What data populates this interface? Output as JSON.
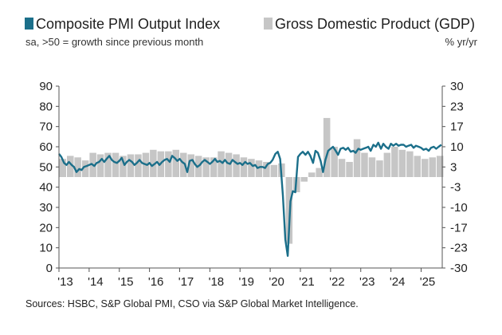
{
  "chart_data": {
    "type": "line+bar",
    "legend": {
      "pmi_label": "Composite PMI Output Index",
      "gdp_label": "Gross Domestic Product (GDP)"
    },
    "left_axis_note": "sa, >50 = growth since previous month",
    "right_axis_note": "% yr/yr",
    "source": "Sources: HSBC, S&P Global PMI, CSO via S&P Global Market Intelligence.",
    "colors": {
      "pmi": "#1b6f8a",
      "gdp": "#c6c6c6",
      "axis": "#555555"
    },
    "left_axis": {
      "min": 0,
      "max": 90,
      "ticks": [
        0,
        10,
        20,
        30,
        40,
        50,
        60,
        70,
        80,
        90
      ]
    },
    "right_axis": {
      "min": -30,
      "max": 30,
      "ticks": [
        "30",
        "23",
        "17",
        "10",
        "3",
        "-3",
        "-10",
        "-17",
        "-23",
        "-30"
      ]
    },
    "x_axis": {
      "start": 2013.0,
      "end": 2025.7,
      "ticks": [
        "'13",
        "'14",
        "'15",
        "'16",
        "'17",
        "'18",
        "'19",
        "'20",
        "'21",
        "'22",
        "'23",
        "'24",
        "'25"
      ]
    },
    "series": [
      {
        "name": "Composite PMI Output Index",
        "kind": "line",
        "axis": "left",
        "points": [
          [
            2013.0,
            56.5
          ],
          [
            2013.08,
            55
          ],
          [
            2013.17,
            52
          ],
          [
            2013.25,
            51
          ],
          [
            2013.33,
            52.5
          ],
          [
            2013.42,
            51
          ],
          [
            2013.5,
            50
          ],
          [
            2013.58,
            47.5
          ],
          [
            2013.67,
            49
          ],
          [
            2013.75,
            48.5
          ],
          [
            2013.83,
            50
          ],
          [
            2013.92,
            50.5
          ],
          [
            2014.0,
            51
          ],
          [
            2014.08,
            51.5
          ],
          [
            2014.17,
            50.5
          ],
          [
            2014.25,
            52
          ],
          [
            2014.33,
            52.5
          ],
          [
            2014.42,
            54
          ],
          [
            2014.5,
            52.5
          ],
          [
            2014.58,
            54
          ],
          [
            2014.67,
            55.5
          ],
          [
            2014.75,
            53.5
          ],
          [
            2014.83,
            52.5
          ],
          [
            2014.92,
            52
          ],
          [
            2015.0,
            53
          ],
          [
            2015.08,
            54.5
          ],
          [
            2015.17,
            51
          ],
          [
            2015.25,
            52.5
          ],
          [
            2015.33,
            53.5
          ],
          [
            2015.42,
            52.5
          ],
          [
            2015.5,
            51
          ],
          [
            2015.58,
            52
          ],
          [
            2015.67,
            53.5
          ],
          [
            2015.75,
            52
          ],
          [
            2015.83,
            51.5
          ],
          [
            2015.92,
            51
          ],
          [
            2016.0,
            52
          ],
          [
            2016.08,
            50.5
          ],
          [
            2016.17,
            51.5
          ],
          [
            2016.25,
            52.5
          ],
          [
            2016.33,
            51
          ],
          [
            2016.42,
            52.5
          ],
          [
            2016.5,
            53.5
          ],
          [
            2016.58,
            54
          ],
          [
            2016.67,
            52.5
          ],
          [
            2016.75,
            55.5
          ],
          [
            2016.83,
            54.5
          ],
          [
            2016.92,
            53
          ],
          [
            2017.0,
            54
          ],
          [
            2017.08,
            52.5
          ],
          [
            2017.17,
            51.5
          ],
          [
            2017.25,
            47.5
          ],
          [
            2017.33,
            53
          ],
          [
            2017.42,
            53.5
          ],
          [
            2017.5,
            51.5
          ],
          [
            2017.58,
            50
          ],
          [
            2017.67,
            51
          ],
          [
            2017.75,
            52.5
          ],
          [
            2017.83,
            53.5
          ],
          [
            2017.92,
            52.5
          ],
          [
            2018.0,
            51.5
          ],
          [
            2018.08,
            52.5
          ],
          [
            2018.17,
            54
          ],
          [
            2018.25,
            52.5
          ],
          [
            2018.33,
            53
          ],
          [
            2018.42,
            52
          ],
          [
            2018.5,
            53.5
          ],
          [
            2018.58,
            52
          ],
          [
            2018.67,
            51.5
          ],
          [
            2018.75,
            53.5
          ],
          [
            2018.83,
            52.5
          ],
          [
            2018.92,
            51.5
          ],
          [
            2019.0,
            52
          ],
          [
            2019.08,
            51
          ],
          [
            2019.17,
            52.5
          ],
          [
            2019.25,
            51.5
          ],
          [
            2019.33,
            52
          ],
          [
            2019.42,
            50.5
          ],
          [
            2019.5,
            51
          ],
          [
            2019.58,
            49.5
          ],
          [
            2019.67,
            50
          ],
          [
            2019.75,
            50
          ],
          [
            2019.83,
            49.5
          ],
          [
            2019.92,
            51.5
          ],
          [
            2020.0,
            52
          ],
          [
            2020.08,
            53.5
          ],
          [
            2020.17,
            56.5
          ],
          [
            2020.25,
            57.5
          ],
          [
            2020.33,
            54
          ],
          [
            2020.42,
            36
          ],
          [
            2020.5,
            14
          ],
          [
            2020.58,
            6
          ],
          [
            2020.67,
            33
          ],
          [
            2020.75,
            38
          ],
          [
            2020.83,
            37.5
          ],
          [
            2020.92,
            55
          ],
          [
            2021.0,
            56.5
          ],
          [
            2021.08,
            57.5
          ],
          [
            2021.17,
            56
          ],
          [
            2021.25,
            57.5
          ],
          [
            2021.33,
            55.5
          ],
          [
            2021.42,
            52
          ],
          [
            2021.5,
            58
          ],
          [
            2021.58,
            57
          ],
          [
            2021.67,
            53
          ],
          [
            2021.75,
            47.5
          ],
          [
            2021.83,
            53.5
          ],
          [
            2021.92,
            58
          ],
          [
            2022.0,
            59
          ],
          [
            2022.08,
            60
          ],
          [
            2022.17,
            58
          ],
          [
            2022.25,
            56
          ],
          [
            2022.33,
            59
          ],
          [
            2022.42,
            59.5
          ],
          [
            2022.5,
            58.5
          ],
          [
            2022.58,
            59.5
          ],
          [
            2022.67,
            57.5
          ],
          [
            2022.75,
            58
          ],
          [
            2022.83,
            57
          ],
          [
            2022.92,
            59
          ],
          [
            2023.0,
            58.5
          ],
          [
            2023.08,
            59
          ],
          [
            2023.17,
            59.5
          ],
          [
            2023.25,
            60
          ],
          [
            2023.33,
            58
          ],
          [
            2023.42,
            61
          ],
          [
            2023.5,
            60
          ],
          [
            2023.58,
            62
          ],
          [
            2023.67,
            59
          ],
          [
            2023.75,
            61.5
          ],
          [
            2023.83,
            60
          ],
          [
            2023.92,
            59
          ],
          [
            2024.0,
            61.5
          ],
          [
            2024.08,
            60.5
          ],
          [
            2024.17,
            61.5
          ],
          [
            2024.25,
            60.5
          ],
          [
            2024.33,
            61
          ],
          [
            2024.42,
            61
          ],
          [
            2024.5,
            60
          ],
          [
            2024.58,
            60.5
          ],
          [
            2024.67,
            61
          ],
          [
            2024.75,
            59.5
          ],
          [
            2024.83,
            60.5
          ],
          [
            2024.92,
            60
          ],
          [
            2025.0,
            59.5
          ],
          [
            2025.08,
            58.5
          ],
          [
            2025.17,
            59
          ],
          [
            2025.25,
            58
          ],
          [
            2025.33,
            59.5
          ],
          [
            2025.42,
            60
          ],
          [
            2025.5,
            59
          ],
          [
            2025.58,
            60
          ],
          [
            2025.67,
            61
          ]
        ]
      },
      {
        "name": "Gross Domestic Product (GDP)",
        "kind": "bar",
        "axis": "right",
        "quarters": [
          [
            2013.0,
            6
          ],
          [
            2013.25,
            7
          ],
          [
            2013.5,
            6.5
          ],
          [
            2013.75,
            5.5
          ],
          [
            2014.0,
            8
          ],
          [
            2014.25,
            7.5
          ],
          [
            2014.5,
            8
          ],
          [
            2014.75,
            8
          ],
          [
            2015.0,
            7
          ],
          [
            2015.25,
            7.5
          ],
          [
            2015.5,
            7.5
          ],
          [
            2015.75,
            8
          ],
          [
            2016.0,
            9
          ],
          [
            2016.25,
            8.5
          ],
          [
            2016.5,
            8.5
          ],
          [
            2016.75,
            9
          ],
          [
            2017.0,
            8
          ],
          [
            2017.25,
            7.5
          ],
          [
            2017.5,
            7
          ],
          [
            2017.75,
            6.5
          ],
          [
            2018.0,
            6.5
          ],
          [
            2018.25,
            8.5
          ],
          [
            2018.5,
            8
          ],
          [
            2018.75,
            7.5
          ],
          [
            2019.0,
            6.5
          ],
          [
            2019.25,
            6
          ],
          [
            2019.5,
            5.5
          ],
          [
            2019.75,
            5
          ],
          [
            2020.0,
            4
          ],
          [
            2020.25,
            4.5
          ],
          [
            2020.5,
            -22
          ],
          [
            2020.75,
            -5
          ],
          [
            2021.0,
            -1.5
          ],
          [
            2021.25,
            1.5
          ],
          [
            2021.5,
            3
          ],
          [
            2021.75,
            19.5
          ],
          [
            2022.0,
            10
          ],
          [
            2022.25,
            6
          ],
          [
            2022.5,
            5
          ],
          [
            2022.75,
            12.5
          ],
          [
            2023.0,
            8
          ],
          [
            2023.25,
            6.5
          ],
          [
            2023.5,
            5.5
          ],
          [
            2023.75,
            8
          ],
          [
            2024.0,
            10
          ],
          [
            2024.25,
            9
          ],
          [
            2024.5,
            8.5
          ],
          [
            2024.75,
            7
          ],
          [
            2025.0,
            6
          ],
          [
            2025.25,
            6.5
          ],
          [
            2025.5,
            7
          ]
        ]
      }
    ]
  }
}
